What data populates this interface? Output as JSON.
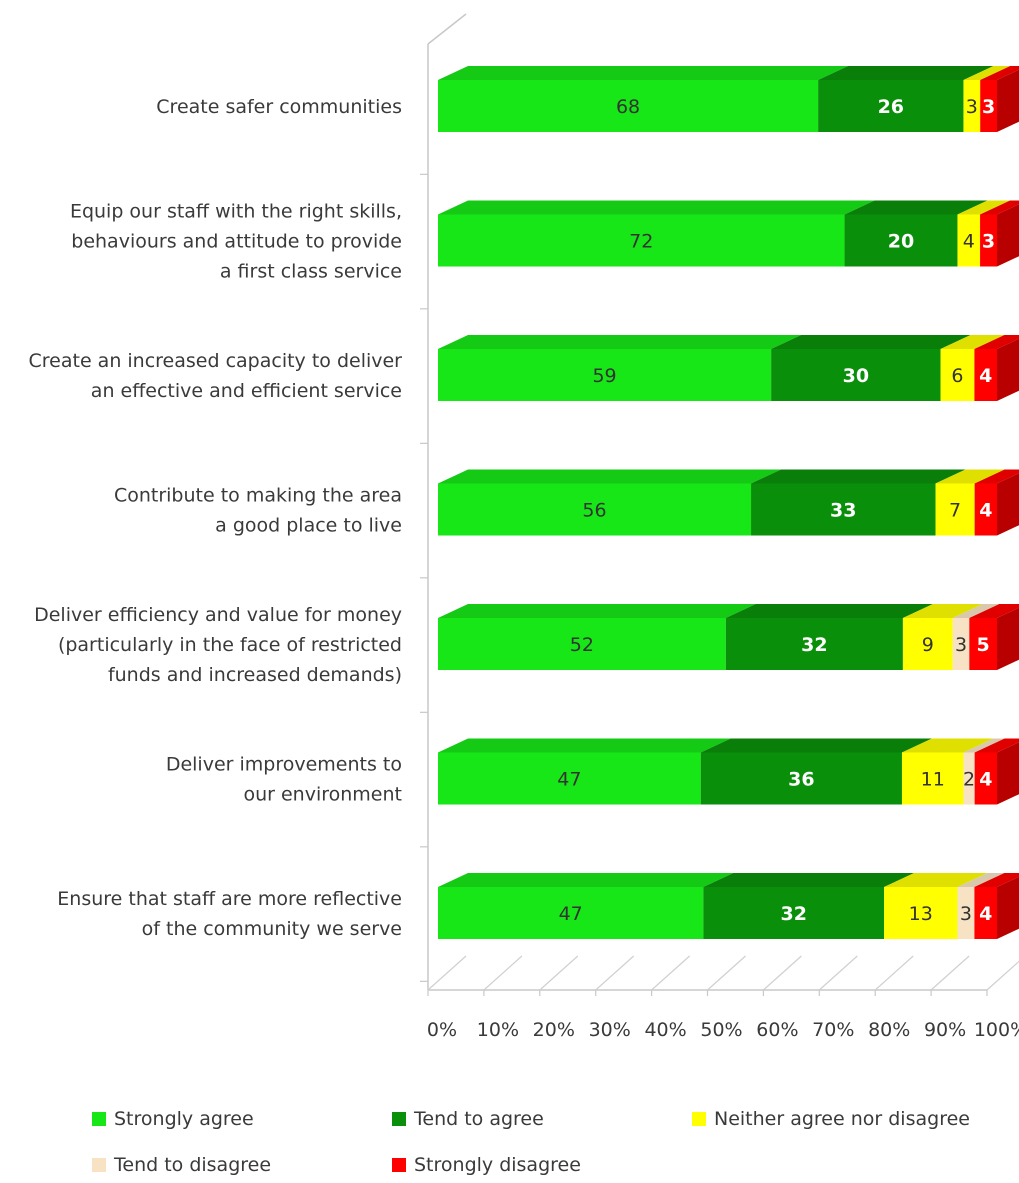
{
  "chart_data": {
    "type": "bar",
    "orientation": "horizontal",
    "stacked": true,
    "three_d": true,
    "categories": [
      [
        "Create safer communities"
      ],
      [
        "Equip our staff with the right skills,",
        "behaviours and attitude to provide",
        "a first class service"
      ],
      [
        "Create an increased capacity to deliver",
        "an effective and efficient service"
      ],
      [
        "Contribute to making the area",
        "a good place to live"
      ],
      [
        "Deliver efficiency and value for money",
        "(particularly in the face of restricted",
        "funds and increased demands)"
      ],
      [
        "Deliver improvements to",
        "our environment"
      ],
      [
        "Ensure that staff are more reflective",
        "of the community we serve"
      ]
    ],
    "series": [
      {
        "name": "Strongly agree",
        "color": "#17e617",
        "label_color": "#333333",
        "bold": false,
        "values": [
          68,
          72,
          59,
          56,
          52,
          47,
          47
        ]
      },
      {
        "name": "Tend to agree",
        "color": "#0a8f0a",
        "label_color": "#ffffff",
        "bold": true,
        "values": [
          26,
          20,
          30,
          33,
          32,
          36,
          32
        ]
      },
      {
        "name": "Neither agree nor disagree",
        "color": "#ffff00",
        "label_color": "#333333",
        "bold": false,
        "values": [
          3,
          4,
          6,
          7,
          9,
          11,
          13
        ]
      },
      {
        "name": "Tend to disagree",
        "color": "#f7e3c3",
        "label_color": "#333333",
        "bold": false,
        "values": [
          0,
          0,
          0,
          0,
          3,
          2,
          3
        ]
      },
      {
        "name": "Strongly disagree",
        "color": "#ff0000",
        "label_color": "#ffffff",
        "bold": true,
        "values": [
          3,
          3,
          4,
          4,
          5,
          4,
          4
        ]
      }
    ],
    "x_ticks": [
      "0%",
      "10%",
      "20%",
      "30%",
      "40%",
      "50%",
      "60%",
      "70%",
      "80%",
      "90%",
      "100%"
    ],
    "xlim": [
      0,
      100
    ],
    "grid": true,
    "legend_position": "bottom"
  }
}
